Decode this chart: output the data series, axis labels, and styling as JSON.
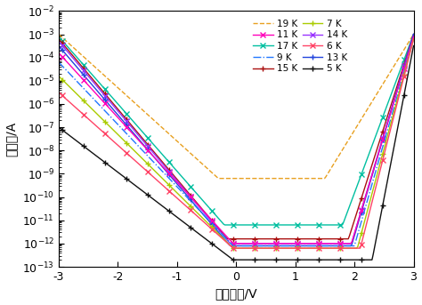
{
  "xlabel": "偏置电压/V",
  "ylabel": "暗电流/A",
  "xlim": [
    -3,
    3
  ],
  "ylim_log": [
    -13,
    -2
  ],
  "temperatures": [
    19,
    17,
    15,
    14,
    13,
    11,
    9,
    7,
    6,
    5
  ],
  "colors": {
    "19": "#E8A020",
    "17": "#00BFA0",
    "15": "#AA1010",
    "14": "#9933FF",
    "13": "#2244DD",
    "11": "#FF00BB",
    "9": "#2277FF",
    "7": "#AACC00",
    "6": "#FF4466",
    "5": "#111111"
  },
  "linestyles": {
    "19": "--",
    "17": "-",
    "15": "-",
    "14": "-",
    "13": "-",
    "11": "-",
    "9": "-.",
    "7": "-",
    "6": "-",
    "5": "-"
  },
  "markers": {
    "19": "none",
    "17": "x",
    "15": "+",
    "14": "x",
    "13": "+",
    "11": "x",
    "9": "none",
    "7": "+",
    "6": "x",
    "5": "+"
  },
  "log_I_at_neg3": {
    "19": -3.0,
    "17": -3.1,
    "15": -3.2,
    "14": -3.3,
    "13": -3.5,
    "11": -3.8,
    "9": -4.2,
    "7": -4.8,
    "6": -5.5,
    "5": -7.0
  },
  "log_I_min": {
    "19": -9.2,
    "17": -11.2,
    "15": -11.8,
    "14": -12.0,
    "13": -12.1,
    "11": -12.0,
    "9": -12.1,
    "7": -12.2,
    "6": -12.2,
    "5": -12.7
  },
  "V_min": {
    "19": -0.3,
    "17": -0.2,
    "15": -0.15,
    "14": -0.1,
    "13": -0.1,
    "11": -0.05,
    "9": -0.05,
    "7": -0.05,
    "6": -0.05,
    "5": -0.05
  },
  "log_I_at_pos3": {
    "19": -3.0,
    "17": -3.0,
    "15": -3.0,
    "14": -3.0,
    "13": -3.0,
    "11": -3.1,
    "9": -3.2,
    "7": -3.2,
    "6": -3.2,
    "5": -3.5
  },
  "V_fwd_onset": {
    "19": 1.5,
    "17": 1.8,
    "15": 1.9,
    "14": 1.95,
    "13": 1.95,
    "11": 1.95,
    "9": 2.0,
    "7": 2.05,
    "6": 2.1,
    "5": 2.3
  }
}
